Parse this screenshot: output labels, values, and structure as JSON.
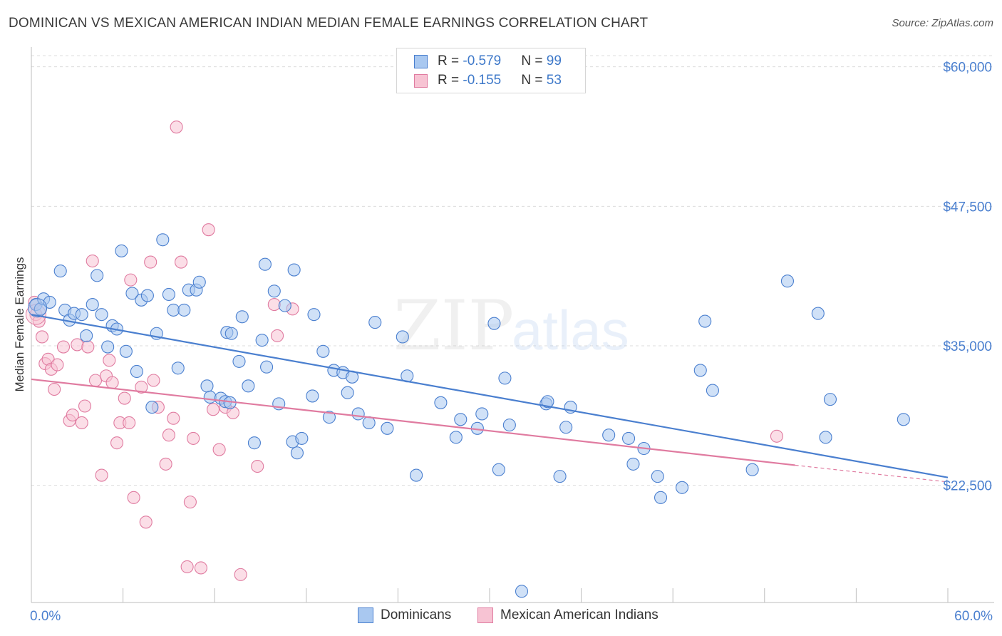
{
  "title": "DOMINICAN VS MEXICAN AMERICAN INDIAN MEDIAN FEMALE EARNINGS CORRELATION CHART",
  "source": "Source: ZipAtlas.com",
  "watermark": {
    "zip": "ZIP",
    "atlas": "atlas"
  },
  "legend": {
    "rows": [
      {
        "r_label": "R = ",
        "r_value": "-0.579",
        "n_label": "N = ",
        "n_value": "99",
        "color": "#a9c8f0",
        "border": "#4a7fcf"
      },
      {
        "r_label": "R = ",
        "r_value": "-0.155",
        "n_label": "N = ",
        "n_value": "53",
        "color": "#f7c3d3",
        "border": "#e07ba0"
      }
    ]
  },
  "bottom_legend": [
    {
      "label": "Dominicans",
      "color": "#a9c8f0",
      "border": "#4a7fcf"
    },
    {
      "label": "Mexican American Indians",
      "color": "#f7c3d3",
      "border": "#e07ba0"
    }
  ],
  "chart_data": {
    "type": "scatter",
    "title": "DOMINICAN VS MEXICAN AMERICAN INDIAN MEDIAN FEMALE EARNINGS CORRELATION CHART",
    "xlabel": "",
    "ylabel": "Median Female Earnings",
    "xlim": [
      0,
      60
    ],
    "ylim": [
      12000,
      61000
    ],
    "x_tick_labels": [
      "0.0%",
      "60.0%"
    ],
    "y_ticks": [
      {
        "value": 22500,
        "label": "$22,500"
      },
      {
        "value": 35000,
        "label": "$35,000"
      },
      {
        "value": 47500,
        "label": "$47,500"
      },
      {
        "value": 60000,
        "label": "$60,000"
      }
    ],
    "grid": "horizontal dashed",
    "series": [
      {
        "name": "Dominicans",
        "color": "#4a7fcf",
        "fill": "#a9c8f0",
        "trend": {
          "x": [
            0,
            60
          ],
          "y": [
            37800,
            23200
          ],
          "style": "solid"
        },
        "points": [
          [
            0.3,
            38700
          ],
          [
            0.6,
            38300
          ],
          [
            0.8,
            39200
          ],
          [
            1.2,
            38900
          ],
          [
            1.9,
            41700
          ],
          [
            2.2,
            38200
          ],
          [
            2.5,
            37300
          ],
          [
            2.8,
            37900
          ],
          [
            3.3,
            37800
          ],
          [
            3.6,
            35900
          ],
          [
            4.0,
            38700
          ],
          [
            4.3,
            41300
          ],
          [
            4.6,
            37800
          ],
          [
            5.0,
            34900
          ],
          [
            5.3,
            36800
          ],
          [
            5.6,
            36500
          ],
          [
            5.9,
            43500
          ],
          [
            6.2,
            34500
          ],
          [
            6.6,
            39700
          ],
          [
            6.9,
            32700
          ],
          [
            7.2,
            39100
          ],
          [
            7.6,
            39500
          ],
          [
            7.9,
            29500
          ],
          [
            8.2,
            36100
          ],
          [
            8.6,
            44500
          ],
          [
            9.0,
            39600
          ],
          [
            9.3,
            38200
          ],
          [
            9.6,
            33000
          ],
          [
            10.0,
            38200
          ],
          [
            10.3,
            40000
          ],
          [
            10.8,
            40000
          ],
          [
            11.0,
            40700
          ],
          [
            11.5,
            31400
          ],
          [
            11.7,
            30400
          ],
          [
            12.4,
            30300
          ],
          [
            12.7,
            30000
          ],
          [
            12.8,
            36200
          ],
          [
            13.1,
            36100
          ],
          [
            13.6,
            33600
          ],
          [
            13.8,
            37600
          ],
          [
            14.2,
            31400
          ],
          [
            14.6,
            26300
          ],
          [
            15.1,
            35500
          ],
          [
            15.4,
            33100
          ],
          [
            15.3,
            42300
          ],
          [
            15.9,
            39900
          ],
          [
            16.2,
            29800
          ],
          [
            16.6,
            38600
          ],
          [
            17.1,
            26400
          ],
          [
            17.4,
            25400
          ],
          [
            17.7,
            26700
          ],
          [
            17.2,
            41800
          ],
          [
            18.5,
            37800
          ],
          [
            18.4,
            30500
          ],
          [
            19.1,
            34500
          ],
          [
            19.5,
            28600
          ],
          [
            19.8,
            32800
          ],
          [
            20.4,
            32600
          ],
          [
            20.7,
            30800
          ],
          [
            21.0,
            32200
          ],
          [
            21.4,
            28900
          ],
          [
            22.1,
            28100
          ],
          [
            22.5,
            37100
          ],
          [
            23.3,
            27600
          ],
          [
            24.3,
            35800
          ],
          [
            24.6,
            32300
          ],
          [
            25.2,
            23400
          ],
          [
            26.8,
            29900
          ],
          [
            27.8,
            26800
          ],
          [
            28.1,
            28400
          ],
          [
            29.2,
            27600
          ],
          [
            29.5,
            28900
          ],
          [
            30.3,
            37000
          ],
          [
            30.6,
            23900
          ],
          [
            31.0,
            32100
          ],
          [
            31.3,
            27900
          ],
          [
            32.1,
            13000
          ],
          [
            33.7,
            29800
          ],
          [
            33.8,
            30000
          ],
          [
            34.6,
            23300
          ],
          [
            35.0,
            27700
          ],
          [
            35.3,
            29500
          ],
          [
            37.8,
            27000
          ],
          [
            39.1,
            26700
          ],
          [
            39.4,
            24400
          ],
          [
            40.1,
            25800
          ],
          [
            41.0,
            23300
          ],
          [
            41.2,
            21400
          ],
          [
            42.6,
            22300
          ],
          [
            43.8,
            32800
          ],
          [
            44.1,
            37200
          ],
          [
            44.6,
            31000
          ],
          [
            47.2,
            23900
          ],
          [
            49.5,
            40800
          ],
          [
            51.5,
            37900
          ],
          [
            52.0,
            26800
          ],
          [
            52.3,
            30200
          ],
          [
            57.1,
            28400
          ],
          [
            13.0,
            29900
          ]
        ]
      },
      {
        "name": "Mexican American Indians",
        "color": "#e07ba0",
        "fill": "#f7c3d3",
        "trend": {
          "x": [
            0,
            50
          ],
          "y": [
            32000,
            24300
          ],
          "style": "solid",
          "dashed_extension": {
            "x": [
              50,
              60
            ],
            "y": [
              24300,
              22800
            ]
          }
        },
        "points": [
          [
            0.2,
            38900
          ],
          [
            0.3,
            37800
          ],
          [
            0.5,
            37200
          ],
          [
            0.7,
            35800
          ],
          [
            0.9,
            33400
          ],
          [
            1.1,
            33800
          ],
          [
            1.3,
            32900
          ],
          [
            1.5,
            31100
          ],
          [
            1.7,
            33300
          ],
          [
            2.1,
            34900
          ],
          [
            2.5,
            28300
          ],
          [
            2.7,
            28800
          ],
          [
            3.0,
            35100
          ],
          [
            3.3,
            28100
          ],
          [
            3.5,
            29600
          ],
          [
            3.7,
            34900
          ],
          [
            4.0,
            42600
          ],
          [
            4.2,
            31900
          ],
          [
            4.6,
            23400
          ],
          [
            4.9,
            32300
          ],
          [
            5.1,
            33700
          ],
          [
            5.3,
            31700
          ],
          [
            5.6,
            26300
          ],
          [
            5.8,
            28100
          ],
          [
            6.1,
            30300
          ],
          [
            6.4,
            28100
          ],
          [
            6.5,
            40900
          ],
          [
            6.7,
            21400
          ],
          [
            7.2,
            31300
          ],
          [
            7.5,
            19200
          ],
          [
            7.8,
            42500
          ],
          [
            8.0,
            31900
          ],
          [
            8.3,
            29500
          ],
          [
            8.8,
            24400
          ],
          [
            9.0,
            27000
          ],
          [
            9.3,
            28500
          ],
          [
            9.5,
            54600
          ],
          [
            9.8,
            42500
          ],
          [
            10.2,
            15200
          ],
          [
            10.4,
            21000
          ],
          [
            10.6,
            26700
          ],
          [
            11.1,
            15100
          ],
          [
            11.6,
            45400
          ],
          [
            11.9,
            29300
          ],
          [
            12.3,
            25700
          ],
          [
            12.7,
            29500
          ],
          [
            13.2,
            29000
          ],
          [
            13.7,
            14500
          ],
          [
            14.8,
            24200
          ],
          [
            15.9,
            38700
          ],
          [
            16.1,
            35900
          ],
          [
            17.1,
            38300
          ],
          [
            48.8,
            26900
          ]
        ]
      }
    ]
  }
}
